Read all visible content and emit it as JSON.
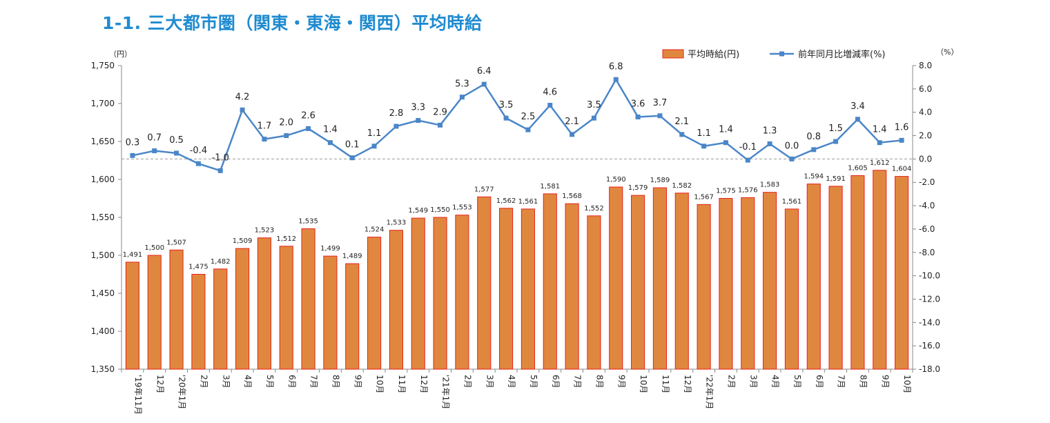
{
  "page": {
    "title": "1-1.  三大都市圏（関東・東海・関西）平均時給"
  },
  "chart_data": {
    "type": "bar",
    "categories": [
      "'19年11月",
      "12月",
      "'20年1月",
      "2月",
      "3月",
      "4月",
      "5月",
      "6月",
      "7月",
      "8月",
      "9月",
      "10月",
      "11月",
      "12月",
      "'21年1月",
      "2月",
      "3月",
      "4月",
      "5月",
      "6月",
      "7月",
      "8月",
      "9月",
      "10月",
      "11月",
      "12月",
      "'22年1月",
      "2月",
      "3月",
      "4月",
      "5月",
      "6月",
      "7月",
      "8月",
      "9月",
      "10月"
    ],
    "series": [
      {
        "name": "平均時給(円)",
        "type": "bar",
        "axis": "left",
        "color": "#e0873f",
        "edge_color": "#e8201a",
        "values": [
          1491,
          1500,
          1507,
          1475,
          1482,
          1509,
          1523,
          1512,
          1535,
          1499,
          1489,
          1524,
          1533,
          1549,
          1550,
          1553,
          1577,
          1562,
          1561,
          1581,
          1568,
          1552,
          1590,
          1579,
          1589,
          1582,
          1567,
          1575,
          1576,
          1583,
          1561,
          1594,
          1591,
          1605,
          1612,
          1604
        ],
        "labels": [
          "1,491",
          "1,500",
          "1,507",
          "1,475",
          "1,482",
          "1,509",
          "1,523",
          "1,512",
          "1,535",
          "1,499",
          "1,489",
          "1,524",
          "1,533",
          "1,549",
          "1,550",
          "1,553",
          "1,577",
          "1,562",
          "1,561",
          "1,581",
          "1,568",
          "1,552",
          "1,590",
          "1,579",
          "1,589",
          "1,582",
          "1,567",
          "1,575",
          "1,576",
          "1,583",
          "1,561",
          "1,594",
          "1,591",
          "1,605",
          "1,612",
          "1,604"
        ]
      },
      {
        "name": "前年同月比増減率(%)",
        "type": "line",
        "axis": "right",
        "color": "#4a86c8",
        "values": [
          0.3,
          0.7,
          0.5,
          -0.4,
          -1.0,
          4.2,
          1.7,
          2.0,
          2.6,
          1.4,
          0.1,
          1.1,
          2.8,
          3.3,
          2.9,
          5.3,
          6.4,
          3.5,
          2.5,
          4.6,
          2.1,
          3.5,
          6.8,
          3.6,
          3.7,
          2.1,
          1.1,
          1.4,
          -0.1,
          1.3,
          0.0,
          0.8,
          1.5,
          3.4,
          1.4,
          1.6
        ],
        "labels": [
          "0.3",
          "0.7",
          "0.5",
          "-0.4",
          "-1.0",
          "4.2",
          "1.7",
          "2.0",
          "2.6",
          "1.4",
          "0.1",
          "1.1",
          "2.8",
          "3.3",
          "2.9",
          "5.3",
          "6.4",
          "3.5",
          "2.5",
          "4.6",
          "2.1",
          "3.5",
          "6.8",
          "3.6",
          "3.7",
          "2.1",
          "1.1",
          "1.4",
          "-0.1",
          "1.3",
          "0.0",
          "0.8",
          "1.5",
          "3.4",
          "1.4",
          "1.6"
        ]
      }
    ],
    "y_left": {
      "unit_label": "（円）",
      "ylim": [
        1350,
        1750
      ],
      "ticks": [
        1350,
        1400,
        1450,
        1500,
        1550,
        1600,
        1650,
        1700,
        1750
      ],
      "tick_labels": [
        "1,350",
        "1,400",
        "1,450",
        "1,500",
        "1,550",
        "1,600",
        "1,650",
        "1,700",
        "1,750"
      ]
    },
    "y_right": {
      "unit_label": "（%）",
      "ylim": [
        -18,
        8
      ],
      "ticks": [
        -18,
        -16,
        -14,
        -12,
        -10,
        -8,
        -6,
        -4,
        -2,
        0,
        2,
        4,
        6,
        8
      ],
      "tick_labels": [
        "-18.0",
        "-16.0",
        "-14.0",
        "-12.0",
        "-10.0",
        "-8.0",
        "-6.0",
        "-4.0",
        "-2.0",
        "0.0",
        "2.0",
        "4.0",
        "6.0",
        "8.0"
      ]
    },
    "zero_reference_line": true,
    "grid": false,
    "legend": {
      "position": "top-right"
    }
  }
}
